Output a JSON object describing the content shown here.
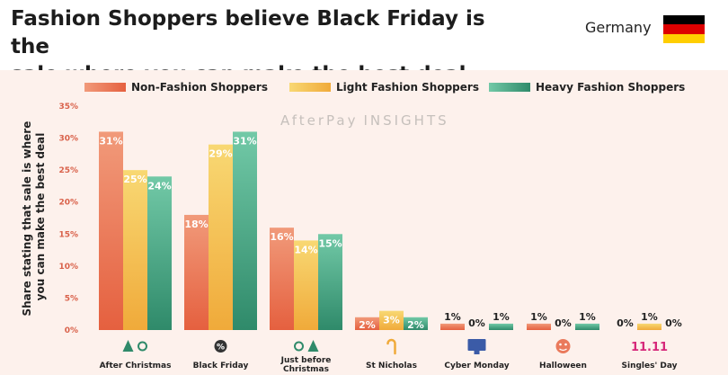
{
  "header": {
    "title_line1": "Fashion Shoppers believe Black Friday is the",
    "title_line2": "sale where you can make the best deal",
    "country": "Germany"
  },
  "colors": {
    "non_fashion": "#ea7a5c",
    "light_fashion": "#f4c24e",
    "heavy_fashion": "#3f9e7e",
    "tick_text": "#d9614a",
    "flag_black": "#000000",
    "flag_red": "#dd0000",
    "flag_gold": "#ffce00"
  },
  "watermark": {
    "brand": "AfterPay",
    "suffix": "INSIGHTS"
  },
  "chart_data": {
    "type": "bar",
    "ylabel_line1": "Share stating that sale is where",
    "ylabel_line2": "you can make the best deal",
    "ylim": [
      0,
      35
    ],
    "yticks": [
      0,
      5,
      10,
      15,
      20,
      25,
      30,
      35
    ],
    "ytick_labels": [
      "0%",
      "5%",
      "10%",
      "15%",
      "20%",
      "25%",
      "30%",
      "35%"
    ],
    "legend_position": "top",
    "grid": false,
    "categories": [
      [
        "After Christmas"
      ],
      [
        "Black Friday"
      ],
      [
        "Just before",
        "Christmas"
      ],
      [
        "St Nicholas"
      ],
      [
        "Cyber Monday"
      ],
      [
        "Halloween"
      ],
      [
        "Singles' Day"
      ]
    ],
    "category_icons": [
      "tree-arrow-icon",
      "percent-badge-icon",
      "arrow-tree-icon",
      "candy-cane-icon",
      "monitor-icon",
      "pumpkin-icon",
      "eleven-eleven-icon"
    ],
    "singles_day_icon_text": "11.11",
    "series": [
      {
        "name": "Non-Fashion Shoppers",
        "values": [
          31,
          18,
          16,
          2,
          1,
          1,
          0
        ],
        "labels": [
          "31%",
          "18%",
          "16%",
          "2%",
          "1%",
          "1%",
          "0%"
        ]
      },
      {
        "name": "Light Fashion Shoppers",
        "values": [
          25,
          29,
          14,
          3,
          0,
          0,
          1
        ],
        "labels": [
          "25%",
          "29%",
          "14%",
          "3%",
          "0%",
          "0%",
          "1%"
        ]
      },
      {
        "name": "Heavy Fashion Shoppers",
        "values": [
          24,
          31,
          15,
          2,
          1,
          1,
          0
        ],
        "labels": [
          "24%",
          "31%",
          "15%",
          "2%",
          "1%",
          "1%",
          "0%"
        ]
      }
    ]
  }
}
